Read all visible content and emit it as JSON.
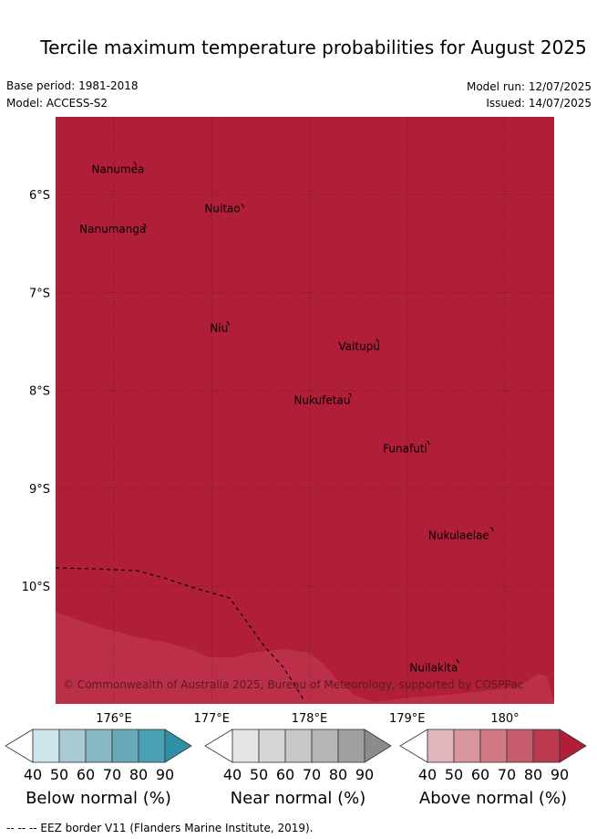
{
  "title": "Tercile maximum temperature probabilities for August 2025",
  "meta": {
    "base_period": "Base period: 1981-2018",
    "model": "Model: ACCESS-S2",
    "model_run": "Model run: 12/07/2025",
    "issued": "Issued: 14/07/2025"
  },
  "map": {
    "fill_color": "#b01e38",
    "shade_color": "#bb3048",
    "grid_color": "#222222",
    "lat_labels": [
      "6°S",
      "7°S",
      "8°S",
      "9°S",
      "10°S"
    ],
    "lon_labels": [
      "176°E",
      "177°E",
      "178°E",
      "179°E",
      "180°"
    ],
    "places": [
      {
        "name": "Nanumea",
        "lon": 176.2,
        "lat": -5.67
      },
      {
        "name": "Nuitao",
        "lon": 177.3,
        "lat": -6.1
      },
      {
        "name": "Nanumanga",
        "lon": 176.3,
        "lat": -6.3
      },
      {
        "name": "Niu",
        "lon": 177.15,
        "lat": -7.3
      },
      {
        "name": "Vaitupu",
        "lon": 178.68,
        "lat": -7.48
      },
      {
        "name": "Nukufetau",
        "lon": 178.4,
        "lat": -8.03
      },
      {
        "name": "Funafuti",
        "lon": 179.2,
        "lat": -8.52
      },
      {
        "name": "Nukulaelae",
        "lon": 179.85,
        "lat": -9.4
      },
      {
        "name": "Nuilakita",
        "lon": 179.5,
        "lat": -10.75
      }
    ],
    "copyright": "© Commonwealth of Australia 2025, Bureau of Meteorology, supported by COSPPac"
  },
  "legend": {
    "ticks": [
      "40",
      "50",
      "60",
      "70",
      "80",
      "90"
    ],
    "groups": [
      {
        "label": "Below normal (%)",
        "colors": [
          "#ffffff",
          "#cde4ec",
          "#a8cad2",
          "#87b7c4",
          "#68a9b9",
          "#4ba0b4",
          "#2e8fa5"
        ]
      },
      {
        "label": "Near normal (%)",
        "colors": [
          "#ffffff",
          "#e5e5e5",
          "#d6d6d6",
          "#c8c8c8",
          "#b5b5b5",
          "#a0a0a0",
          "#8c8c8c"
        ]
      },
      {
        "label": "Above normal (%)",
        "colors": [
          "#ffffff",
          "#e2b4bc",
          "#d8959e",
          "#cf7a84",
          "#c65d6c",
          "#bc3a50",
          "#b01e38"
        ]
      }
    ]
  },
  "footer": "--  --  -- EEZ border V11 (Flanders Marine Institute, 2019)."
}
